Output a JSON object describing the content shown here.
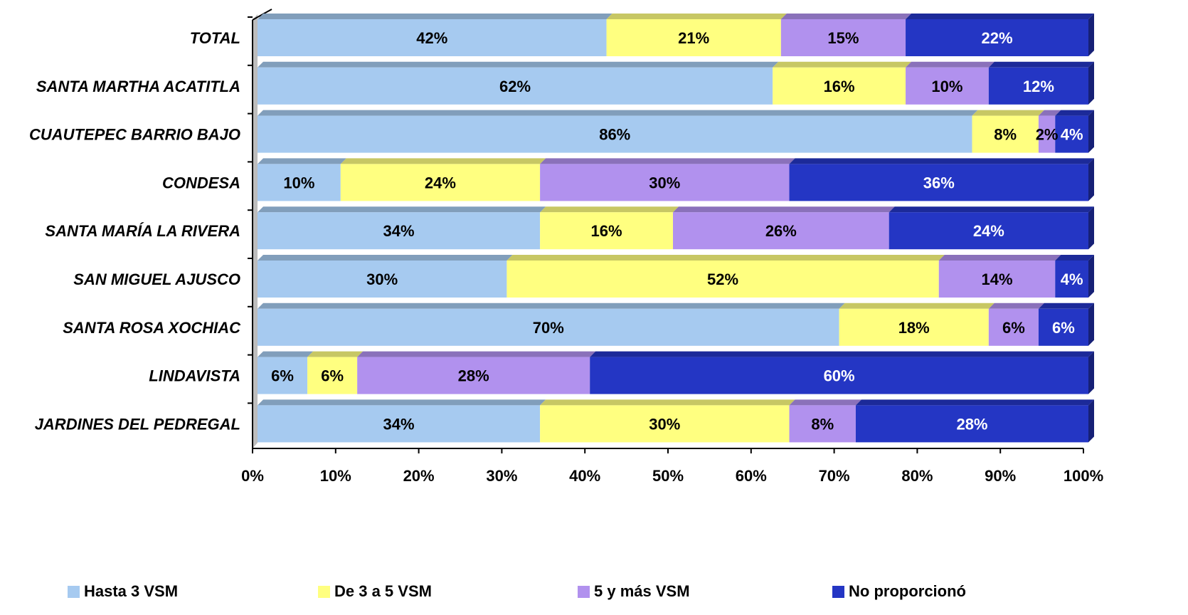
{
  "chart_data": {
    "type": "bar",
    "orientation": "horizontal",
    "stacked": true,
    "percent_stacked": true,
    "categories": [
      "TOTAL",
      "SANTA MARTHA ACATITLA",
      "CUAUTEPEC BARRIO BAJO",
      "CONDESA",
      "SANTA MARÍA LA RIVERA",
      "SAN MIGUEL AJUSCO",
      "SANTA ROSA XOCHIAC",
      "LINDAVISTA",
      "JARDINES DEL PEDREGAL"
    ],
    "series": [
      {
        "name": "Hasta 3 VSM",
        "color": "#A6CAF0",
        "label_color": "#000000",
        "values": [
          42,
          62,
          86,
          10,
          34,
          30,
          70,
          6,
          34
        ]
      },
      {
        "name": "De 3 a 5 VSM",
        "color": "#FFFF80",
        "label_color": "#000000",
        "values": [
          21,
          16,
          8,
          24,
          16,
          52,
          18,
          6,
          30
        ]
      },
      {
        "name": "5 y más VSM",
        "color": "#B191EE",
        "label_color": "#000000",
        "values": [
          15,
          10,
          2,
          30,
          26,
          14,
          6,
          28,
          8
        ]
      },
      {
        "name": "No proporcionó",
        "color": "#2436C4",
        "label_color": "#FFFFFF",
        "values": [
          22,
          12,
          4,
          36,
          24,
          4,
          6,
          60,
          28
        ]
      }
    ],
    "value_suffix": "%",
    "xlim": [
      0,
      100
    ],
    "xticks": [
      "0%",
      "10%",
      "20%",
      "30%",
      "40%",
      "50%",
      "60%",
      "70%",
      "80%",
      "90%",
      "100%"
    ],
    "title": "",
    "xlabel": "",
    "ylabel": "",
    "grid": false,
    "legend_position": "bottom"
  }
}
